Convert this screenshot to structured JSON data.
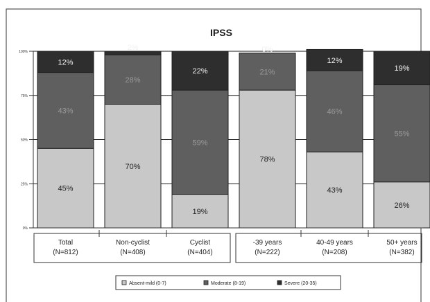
{
  "chart_data": {
    "type": "bar",
    "stacked": true,
    "title": "IPSS",
    "xlabel": "",
    "ylabel": "",
    "ylim": [
      0,
      100
    ],
    "y_ticks": [
      "0%",
      "25%",
      "50%",
      "75%",
      "100%"
    ],
    "grid": true,
    "legend_position": "bottom",
    "categories": [
      {
        "line1": "Total",
        "line2": "(N=812)"
      },
      {
        "line1": "Non-cyclist",
        "line2": "(N=408)"
      },
      {
        "line1": "Cyclist",
        "line2": "(N=404)"
      },
      {
        "line1": "-39 years",
        "line2": "(N=222)"
      },
      {
        "line1": "40-49 years",
        "line2": "(N=208)"
      },
      {
        "line1": "50+ years",
        "line2": "(N=382)"
      }
    ],
    "series": [
      {
        "name": "Absent-mild (0-7)",
        "color": "#c8c8c8",
        "label_color": "#222222",
        "values": [
          45,
          70,
          19,
          78,
          43,
          26
        ],
        "labels": [
          "45%",
          "70%",
          "19%",
          "78%",
          "43%",
          "26%"
        ]
      },
      {
        "name": "Moderate (8-19)",
        "color": "#5f5f5f",
        "label_color": "#9a9a9a",
        "values": [
          43,
          28,
          59,
          21,
          46,
          55
        ],
        "labels": [
          "43%",
          "28%",
          "59%",
          "21%",
          "46%",
          "55%"
        ]
      },
      {
        "name": "Severe (20-35)",
        "color": "#2e2e2e",
        "label_color": "#f2f2f2",
        "values": [
          12,
          2,
          22,
          0,
          12,
          19
        ],
        "labels": [
          "12%",
          "2%",
          "22%",
          "0%",
          "12%",
          "19%"
        ]
      }
    ]
  }
}
